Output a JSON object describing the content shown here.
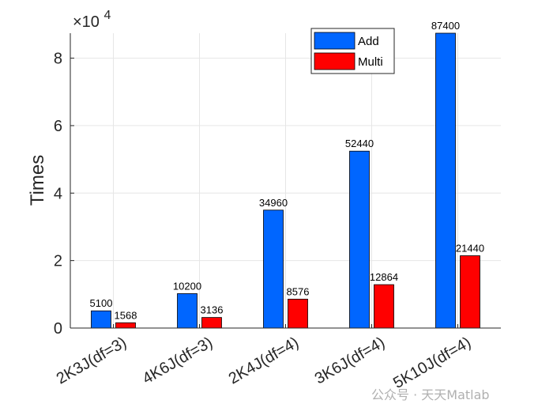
{
  "chart_data": {
    "type": "bar",
    "categories": [
      "2K3J(df=3)",
      "4K6J(df=3)",
      "2K4J(df=4)",
      "3K6J(df=4)",
      "5K10J(df=4)"
    ],
    "series": [
      {
        "name": "Add",
        "color": "#0066ff",
        "values": [
          5100,
          10200,
          34960,
          52440,
          87400
        ]
      },
      {
        "name": "Multi",
        "color": "#ff0000",
        "values": [
          1568,
          3136,
          8576,
          12864,
          21440
        ]
      }
    ],
    "ylabel": "Times",
    "ylim": [
      0,
      87400
    ],
    "yticks": [
      0,
      2,
      4,
      6,
      8
    ],
    "ytick_labels": [
      "0",
      "2",
      "4",
      "6",
      "8"
    ],
    "y_multiplier_label": "×10",
    "y_multiplier_exponent": "4",
    "grid": true,
    "legend_position": "top-right"
  },
  "watermark": "公众号 · 天天Matlab"
}
